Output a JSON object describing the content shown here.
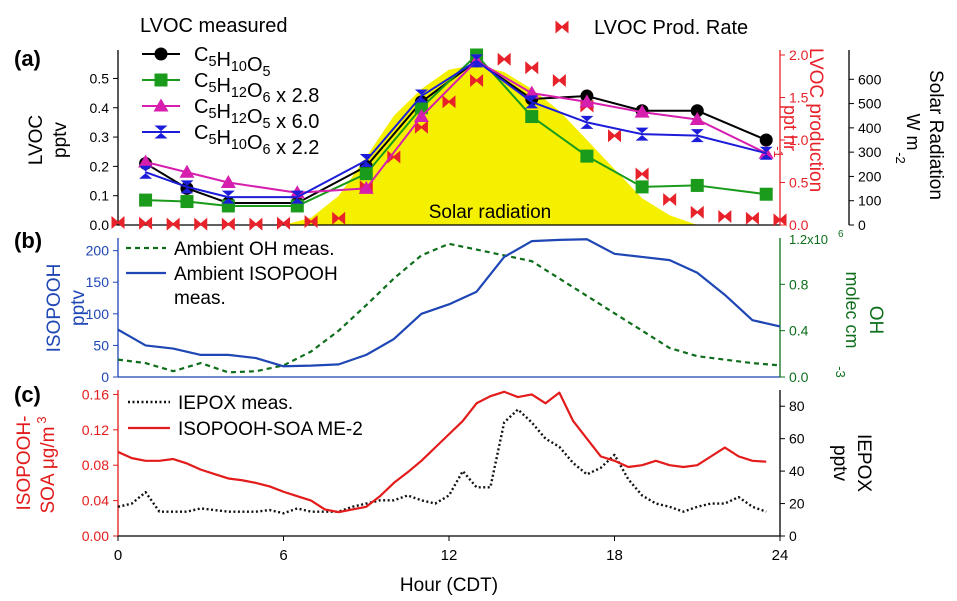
{
  "chart_data": [
    {
      "panel": "(a)",
      "type": "line",
      "legend_title": "LVOC measured",
      "x": [
        0,
        1,
        2.5,
        4,
        6.5,
        9,
        11,
        13,
        15,
        17,
        19,
        21,
        23.5
      ],
      "series": [
        {
          "name": "C5H10O5",
          "marker": "circle",
          "color": "#000000",
          "x": [
            1,
            2.5,
            4,
            6.5,
            9,
            11,
            13,
            15,
            17,
            19,
            21,
            23.5
          ],
          "values": [
            0.21,
            0.125,
            0.075,
            0.075,
            0.2,
            0.42,
            0.56,
            0.43,
            0.44,
            0.39,
            0.39,
            0.29
          ]
        },
        {
          "name": "C5H12O6 x 2.8",
          "marker": "square",
          "color": "#1b9b1b",
          "x": [
            1,
            2.5,
            4,
            6.5,
            9,
            11,
            13,
            15,
            17,
            19,
            21,
            23.5
          ],
          "values": [
            0.085,
            0.08,
            0.065,
            0.065,
            0.175,
            0.4,
            0.58,
            0.37,
            0.235,
            0.13,
            0.135,
            0.105
          ]
        },
        {
          "name": "C5H12O5 x 6.0",
          "marker": "triangle-up",
          "color": "#d61fae",
          "x": [
            1,
            2.5,
            4,
            6.5,
            9,
            11,
            13,
            15,
            17,
            19,
            21,
            23.5
          ],
          "values": [
            0.215,
            0.18,
            0.145,
            0.11,
            0.125,
            0.37,
            0.56,
            0.45,
            0.42,
            0.385,
            0.36,
            0.245
          ]
        },
        {
          "name": "C5H10O6 x 2.2",
          "marker": "bowtie-vertical",
          "color": "#1c1cd9",
          "x": [
            1,
            2.5,
            4,
            6.5,
            9,
            11,
            13,
            15,
            17,
            19,
            21,
            23.5
          ],
          "values": [
            0.18,
            0.13,
            0.095,
            0.095,
            0.22,
            0.44,
            0.56,
            0.42,
            0.35,
            0.31,
            0.305,
            0.245
          ]
        }
      ],
      "prod_rate": {
        "name": "LVOC Prod. Rate",
        "color": "#e8222a",
        "axis": "right1",
        "x": [
          0,
          1,
          2,
          3,
          4,
          5,
          6,
          7,
          8,
          9,
          10,
          11,
          12,
          13,
          14,
          15,
          16,
          17,
          18,
          19,
          20,
          21,
          22,
          23,
          24
        ],
        "values": [
          0.03,
          0.02,
          0.01,
          0.01,
          0.01,
          0.01,
          0.02,
          0.04,
          0.08,
          0.45,
          0.8,
          1.15,
          1.45,
          1.7,
          1.95,
          1.85,
          1.7,
          1.4,
          1.05,
          0.6,
          0.3,
          0.15,
          0.1,
          0.08,
          0.06
        ]
      },
      "solar": {
        "label": "Solar radiation",
        "color": "#f5f000",
        "axis": "right2",
        "x": [
          6,
          7,
          8,
          9,
          10,
          11,
          12,
          13,
          14,
          15,
          16,
          17,
          18,
          19,
          20,
          21
        ],
        "values": [
          0,
          30,
          120,
          280,
          450,
          560,
          640,
          660,
          630,
          560,
          470,
          350,
          230,
          110,
          40,
          0
        ]
      },
      "ylabel_left": [
        "LVOC",
        "pptv"
      ],
      "ylim_left": [
        0,
        0.58
      ],
      "yticks_left": [
        "0.0",
        "0.1",
        "0.2",
        "0.3",
        "0.4",
        "0.5"
      ],
      "ylabel_right1": [
        "LVOC production",
        "ppt hr",
        "-1"
      ],
      "ylim_right1": [
        0,
        2.0
      ],
      "yticks_right1": [
        "0.0",
        "0.5",
        "1.0",
        "1.5",
        "2.0"
      ],
      "ylabel_right2": [
        "Solar Radiation",
        "W m",
        "-2"
      ],
      "ylim_right2": [
        0,
        700
      ],
      "yticks_right2": [
        "0",
        "100",
        "200",
        "300",
        "400",
        "500",
        "600"
      ]
    },
    {
      "panel": "(b)",
      "type": "line",
      "series": [
        {
          "name": "Ambient OH meas.",
          "style": "dashed",
          "color": "#0e6e1c",
          "axis": "right",
          "x": [
            0,
            1,
            2,
            3,
            4,
            5,
            6,
            7,
            8,
            9,
            10,
            11,
            12,
            13,
            14,
            15,
            16,
            17,
            18,
            19,
            20,
            21,
            22,
            23,
            24
          ],
          "values": [
            0.15,
            0.12,
            0.05,
            0.12,
            0.04,
            0.05,
            0.1,
            0.22,
            0.4,
            0.62,
            0.85,
            1.05,
            1.15,
            1.1,
            1.05,
            1.0,
            0.85,
            0.7,
            0.55,
            0.4,
            0.25,
            0.18,
            0.15,
            0.12,
            0.1
          ]
        },
        {
          "name_lines": [
            "Ambient ISOPOOH",
            "meas."
          ],
          "style": "solid",
          "color": "#1e46b4",
          "axis": "left",
          "x": [
            0,
            1,
            2,
            3,
            4,
            5,
            6,
            7,
            8,
            9,
            10,
            11,
            12,
            13,
            14,
            15,
            16,
            17,
            18,
            19,
            20,
            21,
            22,
            23,
            24
          ],
          "values": [
            75,
            50,
            45,
            35,
            35,
            30,
            17,
            18,
            20,
            35,
            60,
            100,
            115,
            135,
            190,
            215,
            217,
            218,
            195,
            190,
            185,
            165,
            130,
            90,
            80
          ]
        }
      ],
      "ylabel_left": [
        "ISOPOOH",
        "pptv"
      ],
      "ylim_left": [
        0,
        220
      ],
      "yticks_left": [
        "0",
        "50",
        "100",
        "150",
        "200"
      ],
      "ylabel_right": [
        "OH",
        "molec cm",
        "-3"
      ],
      "ylim_right": [
        0,
        1.2
      ],
      "yticks_right": [
        "0.0",
        "0.4",
        "0.8"
      ],
      "ytick_top_right": "1.2x10",
      "ytick_top_right_exp": "6"
    },
    {
      "panel": "(c)",
      "type": "line",
      "series": [
        {
          "name": "IEPOX meas.",
          "style": "dotted",
          "color": "#111111",
          "axis": "right",
          "x": [
            0,
            0.5,
            1,
            1.5,
            2,
            2.5,
            3,
            3.5,
            4,
            4.5,
            5,
            5.5,
            6,
            6.5,
            7,
            7.5,
            8,
            8.5,
            9,
            9.5,
            10,
            10.5,
            11,
            11.5,
            12,
            12.5,
            13,
            13.5,
            14,
            14.5,
            15,
            15.5,
            16,
            16.5,
            17,
            17.5,
            18,
            18.5,
            19,
            19.5,
            20,
            20.5,
            21,
            21.5,
            22,
            22.5,
            23,
            23.5
          ],
          "values": [
            18,
            20,
            27,
            15,
            15,
            15,
            17,
            16,
            15,
            15,
            15,
            16,
            14,
            17,
            15,
            15,
            15,
            18,
            20,
            22,
            22,
            25,
            22,
            20,
            25,
            40,
            30,
            30,
            70,
            78,
            70,
            60,
            55,
            45,
            38,
            42,
            50,
            35,
            25,
            20,
            18,
            15,
            18,
            20,
            20,
            24,
            18,
            15
          ]
        },
        {
          "name": "ISOPOOH-SOA ME-2",
          "style": "solid",
          "color": "#e31b1b",
          "axis": "left",
          "x": [
            0,
            0.5,
            1,
            1.5,
            2,
            2.5,
            3,
            3.5,
            4,
            4.5,
            5,
            5.5,
            6,
            6.5,
            7,
            7.5,
            8,
            8.5,
            9,
            9.5,
            10,
            10.5,
            11,
            11.5,
            12,
            12.5,
            13,
            13.5,
            14,
            14.5,
            15,
            15.5,
            16,
            16.5,
            17,
            17.5,
            18,
            18.5,
            19,
            19.5,
            20,
            20.5,
            21,
            21.5,
            22,
            22.5,
            23,
            23.5
          ],
          "values": [
            0.095,
            0.088,
            0.085,
            0.085,
            0.087,
            0.082,
            0.075,
            0.07,
            0.065,
            0.063,
            0.06,
            0.056,
            0.05,
            0.045,
            0.04,
            0.03,
            0.027,
            0.03,
            0.033,
            0.045,
            0.06,
            0.072,
            0.085,
            0.1,
            0.115,
            0.13,
            0.15,
            0.158,
            0.163,
            0.157,
            0.16,
            0.15,
            0.162,
            0.13,
            0.11,
            0.09,
            0.085,
            0.078,
            0.08,
            0.085,
            0.08,
            0.078,
            0.08,
            0.09,
            0.1,
            0.09,
            0.085,
            0.084
          ]
        }
      ],
      "ylabel_left": [
        "ISOPOOH-",
        "SOA μg/m",
        "3"
      ],
      "ylim_left": [
        0,
        0.165
      ],
      "yticks_left": [
        "0.00",
        "0.04",
        "0.08",
        "0.12",
        "0.16"
      ],
      "ylabel_right": [
        "IEPOX",
        "pptv"
      ],
      "ylim_right": [
        0,
        90
      ],
      "yticks_right": [
        "0",
        "20",
        "40",
        "60",
        "80"
      ]
    }
  ],
  "x_axis": {
    "label": "Hour (CDT)",
    "ticks": [
      "0",
      "6",
      "12",
      "18",
      "24"
    ],
    "xlim": [
      0,
      24
    ]
  },
  "colors": {
    "black": "#000000",
    "green": "#1b9b1b",
    "magenta": "#d61fae",
    "blue": "#1c1cd9",
    "red": "#e8222a",
    "yellow": "#f5f000",
    "blue_line": "#1e46b4",
    "green_dash": "#0e6e1c",
    "red_line": "#e31b1b"
  }
}
